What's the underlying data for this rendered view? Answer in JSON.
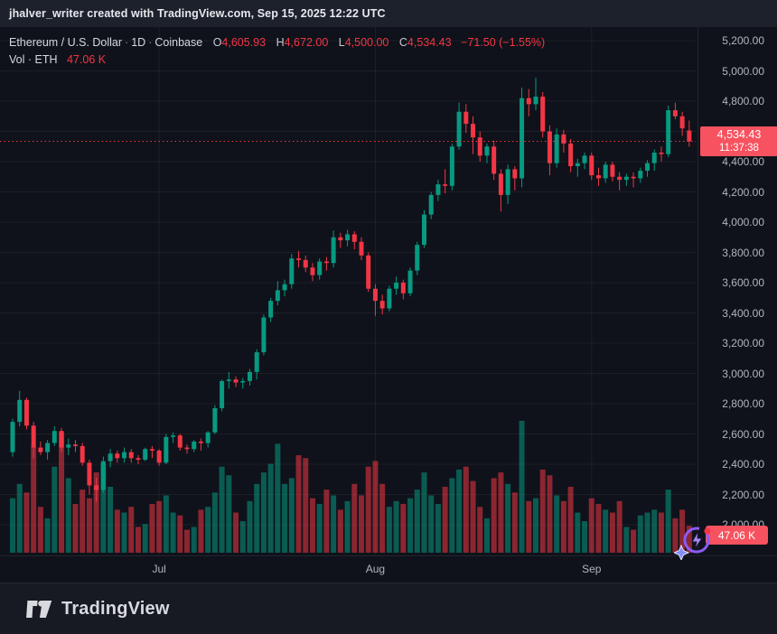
{
  "top_bar": {
    "text": "jhalver_writer created with TradingView.com, Sep 15, 2025 12:22 UTC"
  },
  "legend": {
    "symbol": "Ethereum / U.S. Dollar",
    "separator": "·",
    "interval": "1D",
    "exchange": "Coinbase",
    "ohlc": {
      "o_label": "O",
      "o": "4,605.93",
      "h_label": "H",
      "h": "4,672.00",
      "l_label": "L",
      "l": "4,500.00",
      "c_label": "C",
      "c": "4,534.43",
      "change": "−71.50 (−1.55%)"
    },
    "volume_row": {
      "label": "Vol · ETH",
      "value": "47.06 K"
    }
  },
  "price_label": {
    "price": "4,534.43",
    "countdown": "11:37:38"
  },
  "volume_label": {
    "value": "47.06 K"
  },
  "footer": {
    "brand": "TradingView"
  },
  "icons": {
    "boost_icon": "flash-boost",
    "logo_mark": "tradingview-mark"
  },
  "colors": {
    "up": "#089981",
    "down": "#f23645",
    "vol_up": "rgba(8,153,129,0.55)",
    "vol_down": "rgba(242,54,69,0.55)",
    "flag_red": "#f7525f",
    "grid": "rgba(255,255,255,0.06)",
    "axis_text": "#b2b5be",
    "boost_purple": "#8b5cf6"
  },
  "chart_data": {
    "type": "candlestick+volume",
    "title": "Ethereum / U.S. Dollar · 1D · Coinbase",
    "symbol": "ETHUSD",
    "interval": "1D",
    "exchange": "Coinbase",
    "visible_dates": [
      "2025-06-10",
      "2025-09-15"
    ],
    "price_range": [
      2000,
      5200
    ],
    "last_price": 4534.43,
    "price_axis_labels": [
      "5,200.00",
      "5,000.00",
      "4,800.00",
      "4,600.00",
      "4,400.00",
      "4,200.00",
      "4,000.00",
      "3,800.00",
      "3,600.00",
      "3,400.00",
      "3,200.00",
      "3,000.00",
      "2,800.00",
      "2,600.00",
      "2,400.00",
      "2,200.00",
      "2,000.00"
    ],
    "price_axis_values": [
      5200,
      5000,
      4800,
      4600,
      4400,
      4200,
      4000,
      3800,
      3600,
      3400,
      3200,
      3000,
      2800,
      2600,
      2400,
      2200,
      2000
    ],
    "month_ticks": [
      {
        "label": "Jul",
        "candle_index": 21
      },
      {
        "label": "Aug",
        "candle_index": 52
      },
      {
        "label": "Sep",
        "candle_index": 83
      }
    ],
    "columns": [
      "open",
      "high",
      "low",
      "close",
      "volume_k"
    ],
    "candles": [
      [
        2480,
        2700,
        2450,
        2680,
        95
      ],
      [
        2680,
        2885,
        2650,
        2825,
        120
      ],
      [
        2825,
        2840,
        2630,
        2655,
        105
      ],
      [
        2655,
        2680,
        2440,
        2510,
        185
      ],
      [
        2510,
        2550,
        2460,
        2480,
        80
      ],
      [
        2480,
        2560,
        2430,
        2540,
        60
      ],
      [
        2540,
        2650,
        2520,
        2620,
        150
      ],
      [
        2620,
        2640,
        2480,
        2510,
        210
      ],
      [
        2510,
        2570,
        2460,
        2530,
        130
      ],
      [
        2530,
        2560,
        2480,
        2520,
        85
      ],
      [
        2520,
        2540,
        2390,
        2410,
        110
      ],
      [
        2410,
        2430,
        2200,
        2260,
        95
      ],
      [
        2260,
        2310,
        2150,
        2230,
        140
      ],
      [
        2230,
        2450,
        2210,
        2420,
        155
      ],
      [
        2420,
        2500,
        2380,
        2470,
        115
      ],
      [
        2470,
        2490,
        2410,
        2440,
        75
      ],
      [
        2440,
        2510,
        2410,
        2480,
        70
      ],
      [
        2480,
        2500,
        2410,
        2440,
        80
      ],
      [
        2440,
        2460,
        2400,
        2430,
        45
      ],
      [
        2430,
        2510,
        2420,
        2500,
        50
      ],
      [
        2500,
        2520,
        2440,
        2490,
        85
      ],
      [
        2490,
        2500,
        2390,
        2410,
        90
      ],
      [
        2410,
        2600,
        2400,
        2580,
        100
      ],
      [
        2580,
        2610,
        2540,
        2590,
        70
      ],
      [
        2590,
        2600,
        2490,
        2510,
        65
      ],
      [
        2510,
        2530,
        2470,
        2500,
        40
      ],
      [
        2500,
        2560,
        2480,
        2550,
        45
      ],
      [
        2550,
        2570,
        2490,
        2540,
        75
      ],
      [
        2540,
        2620,
        2510,
        2610,
        80
      ],
      [
        2610,
        2790,
        2600,
        2770,
        105
      ],
      [
        2770,
        2960,
        2750,
        2950,
        150
      ],
      [
        2950,
        3010,
        2900,
        2960,
        135
      ],
      [
        2960,
        2980,
        2910,
        2940,
        70
      ],
      [
        2940,
        2970,
        2900,
        2950,
        55
      ],
      [
        2950,
        3030,
        2920,
        3010,
        90
      ],
      [
        3010,
        3160,
        2960,
        3140,
        120
      ],
      [
        3140,
        3390,
        3120,
        3370,
        140
      ],
      [
        3370,
        3500,
        3340,
        3480,
        155
      ],
      [
        3480,
        3610,
        3450,
        3550,
        190
      ],
      [
        3550,
        3620,
        3510,
        3590,
        120
      ],
      [
        3590,
        3790,
        3560,
        3760,
        130
      ],
      [
        3760,
        3810,
        3700,
        3750,
        170
      ],
      [
        3750,
        3780,
        3670,
        3700,
        165
      ],
      [
        3700,
        3730,
        3610,
        3650,
        95
      ],
      [
        3650,
        3760,
        3620,
        3740,
        85
      ],
      [
        3740,
        3770,
        3680,
        3730,
        110
      ],
      [
        3730,
        3945,
        3700,
        3900,
        100
      ],
      [
        3900,
        3930,
        3830,
        3880,
        75
      ],
      [
        3880,
        3950,
        3840,
        3920,
        90
      ],
      [
        3920,
        3940,
        3820,
        3870,
        120
      ],
      [
        3870,
        3900,
        3750,
        3780,
        100
      ],
      [
        3780,
        3800,
        3540,
        3560,
        150
      ],
      [
        3560,
        3590,
        3380,
        3480,
        160
      ],
      [
        3480,
        3520,
        3390,
        3430,
        120
      ],
      [
        3430,
        3580,
        3410,
        3560,
        80
      ],
      [
        3560,
        3640,
        3520,
        3600,
        90
      ],
      [
        3600,
        3620,
        3490,
        3530,
        85
      ],
      [
        3530,
        3700,
        3510,
        3680,
        95
      ],
      [
        3680,
        3870,
        3650,
        3850,
        110
      ],
      [
        3850,
        4080,
        3830,
        4050,
        140
      ],
      [
        4050,
        4200,
        4020,
        4180,
        100
      ],
      [
        4180,
        4280,
        4140,
        4250,
        85
      ],
      [
        4250,
        4350,
        4190,
        4240,
        115
      ],
      [
        4240,
        4520,
        4210,
        4500,
        130
      ],
      [
        4500,
        4790,
        4480,
        4730,
        145
      ],
      [
        4730,
        4780,
        4590,
        4650,
        150
      ],
      [
        4650,
        4700,
        4450,
        4560,
        125
      ],
      [
        4560,
        4600,
        4400,
        4440,
        80
      ],
      [
        4440,
        4520,
        4390,
        4500,
        60
      ],
      [
        4500,
        4540,
        4280,
        4320,
        130
      ],
      [
        4320,
        4350,
        4070,
        4180,
        140
      ],
      [
        4180,
        4380,
        4120,
        4350,
        120
      ],
      [
        4350,
        4370,
        4210,
        4290,
        105
      ],
      [
        4290,
        4890,
        4230,
        4820,
        230
      ],
      [
        4820,
        4880,
        4700,
        4780,
        90
      ],
      [
        4780,
        4955,
        4740,
        4830,
        95
      ],
      [
        4830,
        4860,
        4560,
        4600,
        145
      ],
      [
        4600,
        4640,
        4310,
        4390,
        135
      ],
      [
        4390,
        4620,
        4360,
        4580,
        100
      ],
      [
        4580,
        4610,
        4460,
        4520,
        90
      ],
      [
        4520,
        4550,
        4330,
        4370,
        115
      ],
      [
        4370,
        4420,
        4300,
        4390,
        70
      ],
      [
        4390,
        4460,
        4350,
        4440,
        55
      ],
      [
        4440,
        4460,
        4280,
        4310,
        95
      ],
      [
        4310,
        4360,
        4240,
        4290,
        85
      ],
      [
        4290,
        4400,
        4260,
        4380,
        75
      ],
      [
        4380,
        4400,
        4270,
        4300,
        70
      ],
      [
        4300,
        4330,
        4210,
        4280,
        90
      ],
      [
        4280,
        4320,
        4240,
        4300,
        45
      ],
      [
        4300,
        4330,
        4230,
        4290,
        40
      ],
      [
        4290,
        4360,
        4260,
        4340,
        65
      ],
      [
        4340,
        4410,
        4300,
        4390,
        70
      ],
      [
        4390,
        4480,
        4340,
        4460,
        75
      ],
      [
        4460,
        4500,
        4400,
        4450,
        70
      ],
      [
        4450,
        4770,
        4430,
        4740,
        110
      ],
      [
        4740,
        4790,
        4680,
        4700,
        60
      ],
      [
        4700,
        4730,
        4570,
        4620,
        75
      ],
      [
        4605.93,
        4672,
        4500,
        4534.43,
        47.06
      ]
    ]
  }
}
